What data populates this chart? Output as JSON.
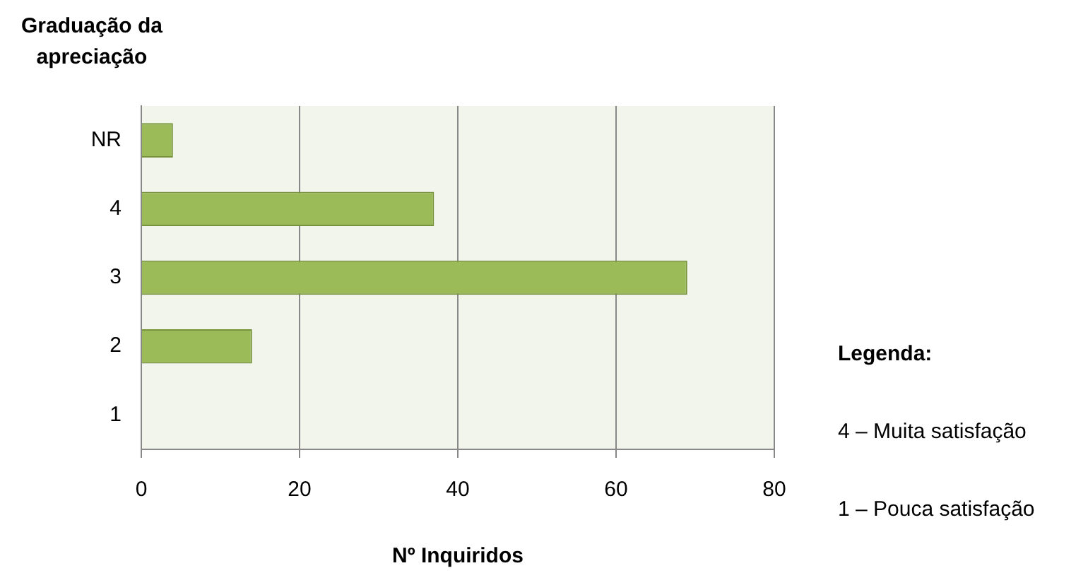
{
  "chart_data": {
    "type": "bar",
    "orientation": "horizontal",
    "ylabel": "Graduação da apreciação",
    "xlabel": "Nº Inquiridos",
    "categories": [
      "NR",
      "4",
      "3",
      "2",
      "1"
    ],
    "values": [
      4,
      37,
      69,
      14,
      0
    ],
    "color": "#9bbb59",
    "xlim": [
      0,
      80
    ],
    "xticks": [
      0,
      20,
      40,
      60,
      80
    ],
    "grid": "x",
    "legend": false,
    "annotations": [
      "Legenda:",
      "4 – Muita satisfação",
      "1 – Pouca satisfação"
    ]
  }
}
